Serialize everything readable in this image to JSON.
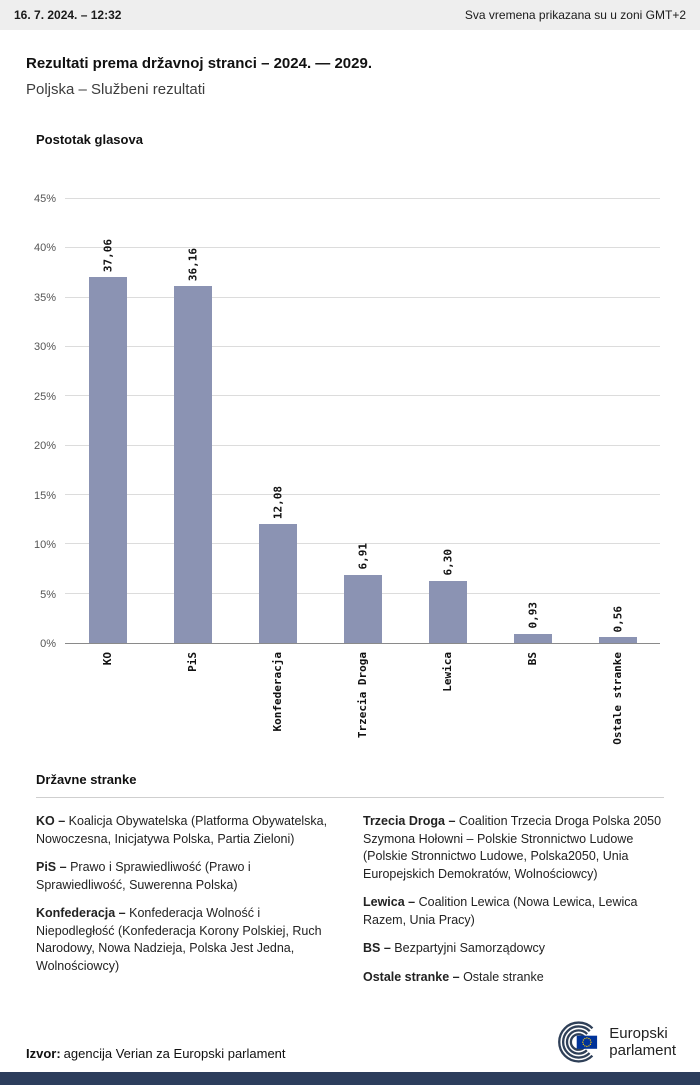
{
  "header": {
    "datetime": "16. 7. 2024. – 12:32",
    "timezone_note": "Sva vremena prikazana su u zoni GMT+2"
  },
  "title": "Rezultati prema državnoj stranci – 2024. — 2029.",
  "subtitle": "Poljska – Službeni rezultati",
  "chart_data": {
    "type": "bar",
    "title": "Postotak glasova",
    "categories": [
      "KO",
      "PiS",
      "Konfederacja",
      "Trzecia Droga",
      "Lewica",
      "BS",
      "Ostale stranke"
    ],
    "values": [
      37.06,
      36.16,
      12.08,
      6.91,
      6.3,
      0.93,
      0.56
    ],
    "value_labels": [
      "37,06",
      "36,16",
      "12,08",
      "6,91",
      "6,30",
      "0,93",
      "0,56"
    ],
    "ylabel": "",
    "xlabel": "",
    "ylim": [
      0,
      45
    ],
    "yticks": [
      {
        "v": 0,
        "label": "0%"
      },
      {
        "v": 5,
        "label": "5%"
      },
      {
        "v": 10,
        "label": "10%"
      },
      {
        "v": 15,
        "label": "15%"
      },
      {
        "v": 20,
        "label": "20%"
      },
      {
        "v": 25,
        "label": "25%"
      },
      {
        "v": 30,
        "label": "30%"
      },
      {
        "v": 35,
        "label": "35%"
      },
      {
        "v": 40,
        "label": "40%"
      },
      {
        "v": 45,
        "label": "45%"
      }
    ],
    "grid": true,
    "legend_position": "none",
    "bar_color": "#8b93b3"
  },
  "parties_section": {
    "heading": "Državne stranke",
    "columns": {
      "left": [
        {
          "label": "KO –",
          "text": "Koalicja Obywatelska (Platforma Obywatelska, Nowoczesna, Inicjatywa Polska, Partia Zieloni)"
        },
        {
          "label": "PiS –",
          "text": "Prawo i Sprawiedliwość (Prawo i Sprawiedliwość, Suwerenna Polska)"
        },
        {
          "label": "Konfederacja –",
          "text": "Konfederacja Wolność i Niepodległość (Konfederacja Korony Polskiej, Ruch Narodowy, Nowa Nadzieja, Polska Jest Jedna, Wolnościowcy)"
        }
      ],
      "right": [
        {
          "label": "Trzecia Droga –",
          "text": "Coalition Trzecia Droga Polska 2050 Szymona Hołowni – Polskie Stronnictwo Ludowe (Polskie Stronnictwo Ludowe, Polska2050, Unia Europejskich Demokratów, Wolnościowcy)"
        },
        {
          "label": "Lewica –",
          "text": "Coalition Lewica (Nowa Lewica, Lewica Razem, Unia Pracy)"
        },
        {
          "label": "BS –",
          "text": "Bezpartyjni Samorządowcy"
        },
        {
          "label": "Ostale stranke –",
          "text": "Ostale stranke"
        }
      ]
    }
  },
  "footer": {
    "source_label": "Izvor:",
    "source_text": "agencija Verian za Europski parlament",
    "logo_line1": "Europski",
    "logo_line2": "parlament"
  },
  "colors": {
    "bar": "#8b93b3",
    "topbar_bg": "#eeeeee",
    "bottom_bar": "#2c3d5c",
    "gridline": "#dcdcdc"
  }
}
